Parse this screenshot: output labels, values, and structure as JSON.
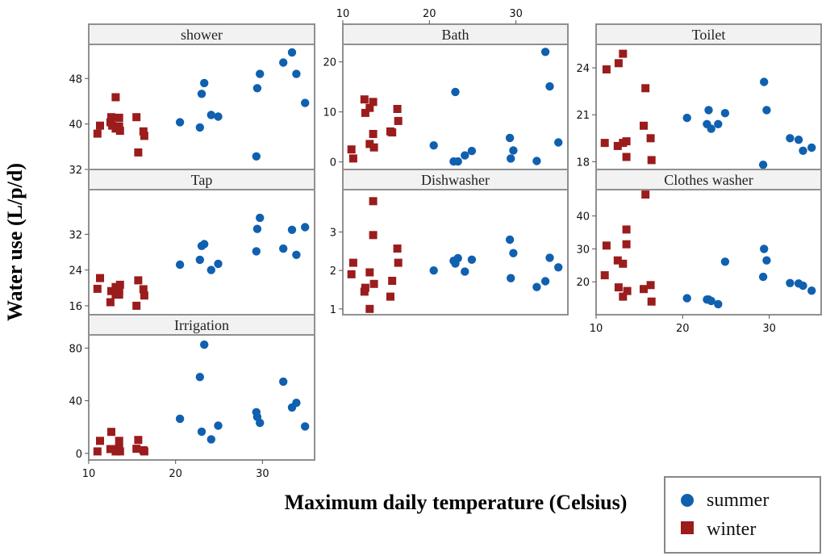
{
  "chart_data": {
    "type": "scatter",
    "ylabel": "Water use (L/p/d)",
    "xlabel": "Maximum daily temperature (Celsius)",
    "legend": {
      "placement": "bottom-right",
      "entries": [
        {
          "name": "summer",
          "color": "#1060b0",
          "marker": "circle"
        },
        {
          "name": "winter",
          "color": "#9b1c1c",
          "marker": "square"
        }
      ]
    },
    "xaxis": {
      "range": [
        10,
        36
      ],
      "ticks": [
        10,
        20,
        30
      ],
      "tick_labels": [
        "10",
        "20",
        "30"
      ]
    },
    "panels": [
      {
        "title": "shower",
        "ylim": [
          32,
          54
        ],
        "yticks": [
          32,
          40,
          48
        ],
        "ytick_labels": [
          "32",
          "40",
          "48"
        ],
        "series": [
          {
            "name": "winter",
            "points": [
              [
                11,
                38.3
              ],
              [
                11.3,
                39.7
              ],
              [
                12.5,
                40.3
              ],
              [
                12.6,
                41.2
              ],
              [
                12.7,
                39.7
              ],
              [
                13.1,
                44.7
              ],
              [
                13.1,
                39.2
              ],
              [
                13.5,
                41.1
              ],
              [
                13.5,
                39.6
              ],
              [
                13.6,
                38.8
              ],
              [
                15.5,
                41.2
              ],
              [
                15.7,
                35
              ],
              [
                16.3,
                38.7
              ],
              [
                16.4,
                37.9
              ]
            ]
          },
          {
            "name": "summer",
            "points": [
              [
                20.5,
                40.3
              ],
              [
                22.8,
                39.4
              ],
              [
                23,
                45.3
              ],
              [
                23.3,
                47.2
              ],
              [
                24.1,
                41.6
              ],
              [
                24.9,
                41.3
              ],
              [
                29.3,
                34.3
              ],
              [
                29.4,
                46.3
              ],
              [
                29.7,
                48.8
              ],
              [
                32.4,
                50.8
              ],
              [
                33.4,
                52.6
              ],
              [
                33.9,
                48.8
              ],
              [
                34.9,
                43.7
              ]
            ]
          }
        ]
      },
      {
        "title": "Tap",
        "ylim": [
          14,
          42
        ],
        "yticks": [
          16,
          24,
          32
        ],
        "ytick_labels": [
          "16",
          "24",
          "32"
        ],
        "series": [
          {
            "name": "winter",
            "points": [
              [
                11,
                19.8
              ],
              [
                11.3,
                22.2
              ],
              [
                12.5,
                16.8
              ],
              [
                12.6,
                19.3
              ],
              [
                13.1,
                18.5
              ],
              [
                13.1,
                20.2
              ],
              [
                13.5,
                19.3
              ],
              [
                13.5,
                18.5
              ],
              [
                13.6,
                20.7
              ],
              [
                15.5,
                16
              ],
              [
                15.7,
                21.7
              ],
              [
                16.3,
                19.7
              ],
              [
                16.4,
                18.3
              ]
            ]
          },
          {
            "name": "summer",
            "points": [
              [
                20.5,
                25.2
              ],
              [
                22.8,
                26.3
              ],
              [
                23,
                29.4
              ],
              [
                23.3,
                29.8
              ],
              [
                24.1,
                24
              ],
              [
                24.9,
                25.4
              ],
              [
                29.3,
                28.2
              ],
              [
                29.4,
                33.2
              ],
              [
                29.7,
                35.7
              ],
              [
                32.4,
                28.8
              ],
              [
                33.4,
                33
              ],
              [
                33.9,
                27.4
              ],
              [
                34.9,
                33.6
              ]
            ]
          }
        ]
      },
      {
        "title": "Irrigation",
        "ylim": [
          -5,
          90
        ],
        "yticks": [
          0,
          40,
          80
        ],
        "ytick_labels": [
          "0",
          "40",
          "80"
        ],
        "series": [
          {
            "name": "winter",
            "points": [
              [
                11,
                1.5
              ],
              [
                11.3,
                9.5
              ],
              [
                12.5,
                3.3
              ],
              [
                12.6,
                16.3
              ],
              [
                13.1,
                3.3
              ],
              [
                13.1,
                1.5
              ],
              [
                13.5,
                9.5
              ],
              [
                13.5,
                4.2
              ],
              [
                13.6,
                1.5
              ],
              [
                15.5,
                3.5
              ],
              [
                15.7,
                10.2
              ],
              [
                16.3,
                2.4
              ],
              [
                16.4,
                1.5
              ]
            ]
          },
          {
            "name": "summer",
            "points": [
              [
                20.5,
                26.3
              ],
              [
                22.8,
                58
              ],
              [
                23,
                16.5
              ],
              [
                23.3,
                82.6
              ],
              [
                24.1,
                10.7
              ],
              [
                24.9,
                21.1
              ],
              [
                29.3,
                31.3
              ],
              [
                29.4,
                27.7
              ],
              [
                29.7,
                23.2
              ],
              [
                32.4,
                54.5
              ],
              [
                33.4,
                34.9
              ],
              [
                33.9,
                38.4
              ],
              [
                34.9,
                20.5
              ]
            ]
          }
        ]
      },
      {
        "title": "Bath",
        "ylim": [
          -1.5,
          23.5
        ],
        "yticks": [
          0,
          10,
          20
        ],
        "ytick_labels": [
          "0",
          "10",
          "20"
        ],
        "series": [
          {
            "name": "winter",
            "points": [
              [
                11,
                2.5
              ],
              [
                11.2,
                0.7
              ],
              [
                12.5,
                12.5
              ],
              [
                12.6,
                9.8
              ],
              [
                13.1,
                10.8
              ],
              [
                13.1,
                3.6
              ],
              [
                13.5,
                12
              ],
              [
                13.5,
                5.6
              ],
              [
                13.6,
                2.9
              ],
              [
                15.5,
                6.1
              ],
              [
                15.7,
                5.9
              ],
              [
                16.3,
                10.6
              ],
              [
                16.4,
                8.2
              ]
            ]
          },
          {
            "name": "summer",
            "points": [
              [
                20.5,
                3.3
              ],
              [
                22.8,
                0.1
              ],
              [
                23,
                14
              ],
              [
                23.3,
                0.1
              ],
              [
                24.1,
                1.3
              ],
              [
                24.9,
                2.2
              ],
              [
                29.3,
                4.8
              ],
              [
                29.4,
                0.7
              ],
              [
                29.7,
                2.3
              ],
              [
                32.4,
                0.2
              ],
              [
                33.4,
                22
              ],
              [
                33.9,
                15.1
              ],
              [
                34.9,
                3.9
              ]
            ]
          }
        ]
      },
      {
        "title": "Dishwasher",
        "ylim": [
          0.85,
          4.1
        ],
        "yticks": [
          1,
          2,
          3
        ],
        "ytick_labels": [
          "1",
          "2",
          "3"
        ],
        "series": [
          {
            "name": "winter",
            "points": [
              [
                11,
                1.9
              ],
              [
                11.2,
                2.2
              ],
              [
                12.5,
                1.45
              ],
              [
                12.6,
                1.55
              ],
              [
                13.1,
                1.95
              ],
              [
                13.1,
                1
              ],
              [
                13.5,
                3.8
              ],
              [
                13.5,
                2.92
              ],
              [
                13.6,
                1.65
              ],
              [
                15.5,
                1.32
              ],
              [
                15.7,
                1.73
              ],
              [
                16.3,
                2.57
              ],
              [
                16.4,
                2.2
              ]
            ]
          },
          {
            "name": "summer",
            "points": [
              [
                20.5,
                2
              ],
              [
                22.8,
                2.25
              ],
              [
                23,
                2.18
              ],
              [
                23.3,
                2.32
              ],
              [
                24.1,
                1.97
              ],
              [
                24.9,
                2.28
              ],
              [
                29.3,
                2.8
              ],
              [
                29.4,
                1.8
              ],
              [
                29.7,
                2.45
              ],
              [
                32.4,
                1.57
              ],
              [
                33.4,
                1.72
              ],
              [
                33.9,
                2.33
              ],
              [
                34.9,
                2.08
              ]
            ]
          }
        ]
      },
      {
        "title": "Toilet",
        "ylim": [
          17.5,
          25.5
        ],
        "yticks": [
          18,
          21,
          24
        ],
        "ytick_labels": [
          "18",
          "21",
          "24"
        ],
        "series": [
          {
            "name": "winter",
            "points": [
              [
                11,
                19.2
              ],
              [
                11.2,
                23.9
              ],
              [
                12.5,
                19
              ],
              [
                12.6,
                24.3
              ],
              [
                13.1,
                19.2
              ],
              [
                13.1,
                24.9
              ],
              [
                13.5,
                18.3
              ],
              [
                13.5,
                19.3
              ],
              [
                15.5,
                20.3
              ],
              [
                15.7,
                22.7
              ],
              [
                16.3,
                19.5
              ],
              [
                16.4,
                18.1
              ]
            ]
          },
          {
            "name": "summer",
            "points": [
              [
                20.5,
                20.8
              ],
              [
                22.8,
                20.4
              ],
              [
                23,
                21.3
              ],
              [
                23.3,
                20.1
              ],
              [
                24.1,
                20.4
              ],
              [
                24.9,
                21.1
              ],
              [
                29.3,
                17.8
              ],
              [
                29.4,
                23.1
              ],
              [
                29.7,
                21.3
              ],
              [
                32.4,
                19.5
              ],
              [
                33.4,
                19.4
              ],
              [
                33.9,
                18.7
              ],
              [
                34.9,
                18.9
              ]
            ]
          }
        ]
      },
      {
        "title": "Clothes washer",
        "ylim": [
          10,
          48
        ],
        "yticks": [
          20,
          30,
          40
        ],
        "ytick_labels": [
          "20",
          "30",
          "40"
        ],
        "series": [
          {
            "name": "winter",
            "points": [
              [
                11,
                22
              ],
              [
                11.2,
                31
              ],
              [
                12.5,
                26.5
              ],
              [
                12.6,
                18.3
              ],
              [
                13.1,
                25.5
              ],
              [
                13.1,
                15.5
              ],
              [
                13.5,
                35.9
              ],
              [
                13.5,
                31.4
              ],
              [
                13.6,
                17.2
              ],
              [
                15.5,
                17.8
              ],
              [
                15.7,
                46.5
              ],
              [
                16.3,
                19
              ],
              [
                16.4,
                14
              ]
            ]
          },
          {
            "name": "summer",
            "points": [
              [
                20.5,
                15
              ],
              [
                22.8,
                14.6
              ],
              [
                23,
                14.6
              ],
              [
                23.3,
                14.2
              ],
              [
                24.1,
                13.2
              ],
              [
                24.9,
                26.1
              ],
              [
                29.3,
                21.5
              ],
              [
                29.4,
                30
              ],
              [
                29.7,
                26.5
              ],
              [
                32.4,
                19.6
              ],
              [
                33.4,
                19.5
              ],
              [
                33.9,
                18.8
              ],
              [
                34.9,
                17.3
              ]
            ]
          }
        ]
      }
    ]
  }
}
